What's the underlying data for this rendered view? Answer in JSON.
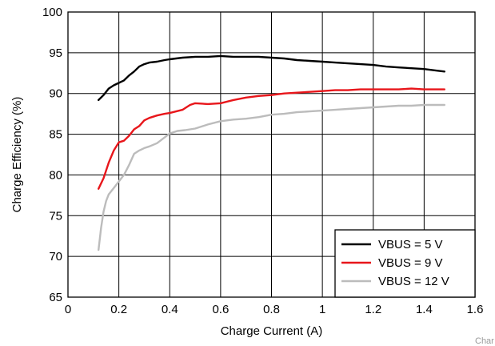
{
  "chart_data": {
    "type": "line",
    "xlabel": "Charge Current (A)",
    "ylabel": "Charge Efficiency (%)",
    "xlim": [
      0,
      1.6
    ],
    "ylim": [
      65,
      100
    ],
    "xticks": [
      "0",
      "0.2",
      "0.4",
      "0.6",
      "0.8",
      "1",
      "1.2",
      "1.4",
      "1.6"
    ],
    "yticks": [
      "65",
      "70",
      "75",
      "80",
      "85",
      "90",
      "95",
      "100"
    ],
    "grid": true,
    "legend_position": "bottom-right",
    "watermark": "Char",
    "series": [
      {
        "name": "VBUS = 5 V",
        "color": "#000000",
        "x": [
          0.12,
          0.14,
          0.16,
          0.18,
          0.2,
          0.22,
          0.24,
          0.26,
          0.28,
          0.3,
          0.32,
          0.35,
          0.38,
          0.4,
          0.45,
          0.5,
          0.55,
          0.6,
          0.65,
          0.7,
          0.75,
          0.8,
          0.85,
          0.9,
          0.95,
          1.0,
          1.05,
          1.1,
          1.15,
          1.2,
          1.25,
          1.3,
          1.35,
          1.4,
          1.45,
          1.48
        ],
        "y": [
          89.2,
          89.8,
          90.6,
          91.0,
          91.3,
          91.6,
          92.2,
          92.7,
          93.3,
          93.6,
          93.8,
          93.9,
          94.1,
          94.2,
          94.4,
          94.5,
          94.5,
          94.6,
          94.5,
          94.5,
          94.5,
          94.4,
          94.3,
          94.1,
          94.0,
          93.9,
          93.8,
          93.7,
          93.6,
          93.5,
          93.3,
          93.2,
          93.1,
          93.0,
          92.8,
          92.7
        ]
      },
      {
        "name": "VBUS = 9 V",
        "color": "#e8161b",
        "x": [
          0.12,
          0.14,
          0.16,
          0.18,
          0.2,
          0.22,
          0.24,
          0.26,
          0.28,
          0.3,
          0.32,
          0.35,
          0.38,
          0.4,
          0.45,
          0.48,
          0.5,
          0.55,
          0.6,
          0.65,
          0.7,
          0.75,
          0.8,
          0.85,
          0.9,
          0.95,
          1.0,
          1.05,
          1.1,
          1.15,
          1.2,
          1.25,
          1.3,
          1.35,
          1.4,
          1.45,
          1.48
        ],
        "y": [
          78.3,
          79.6,
          81.5,
          83.0,
          84.0,
          84.2,
          84.8,
          85.6,
          86.0,
          86.7,
          87.0,
          87.3,
          87.5,
          87.6,
          88.0,
          88.6,
          88.8,
          88.7,
          88.8,
          89.2,
          89.5,
          89.7,
          89.8,
          90.0,
          90.1,
          90.2,
          90.3,
          90.4,
          90.4,
          90.5,
          90.5,
          90.5,
          90.5,
          90.6,
          90.5,
          90.5,
          90.5
        ]
      },
      {
        "name": "VBUS = 12 V",
        "color": "#bcbcbc",
        "x": [
          0.12,
          0.13,
          0.14,
          0.15,
          0.16,
          0.18,
          0.2,
          0.22,
          0.24,
          0.26,
          0.28,
          0.3,
          0.32,
          0.35,
          0.38,
          0.4,
          0.43,
          0.46,
          0.5,
          0.55,
          0.6,
          0.65,
          0.7,
          0.75,
          0.8,
          0.85,
          0.9,
          0.95,
          1.0,
          1.05,
          1.1,
          1.15,
          1.2,
          1.25,
          1.3,
          1.35,
          1.4,
          1.45,
          1.48
        ],
        "y": [
          70.8,
          73.5,
          75.5,
          76.8,
          77.6,
          78.4,
          79.2,
          80.0,
          81.2,
          82.6,
          83.0,
          83.3,
          83.5,
          83.9,
          84.6,
          85.1,
          85.4,
          85.5,
          85.7,
          86.2,
          86.6,
          86.8,
          86.9,
          87.1,
          87.4,
          87.5,
          87.7,
          87.8,
          87.9,
          88.0,
          88.1,
          88.2,
          88.3,
          88.4,
          88.5,
          88.5,
          88.6,
          88.6,
          88.6
        ]
      }
    ]
  }
}
